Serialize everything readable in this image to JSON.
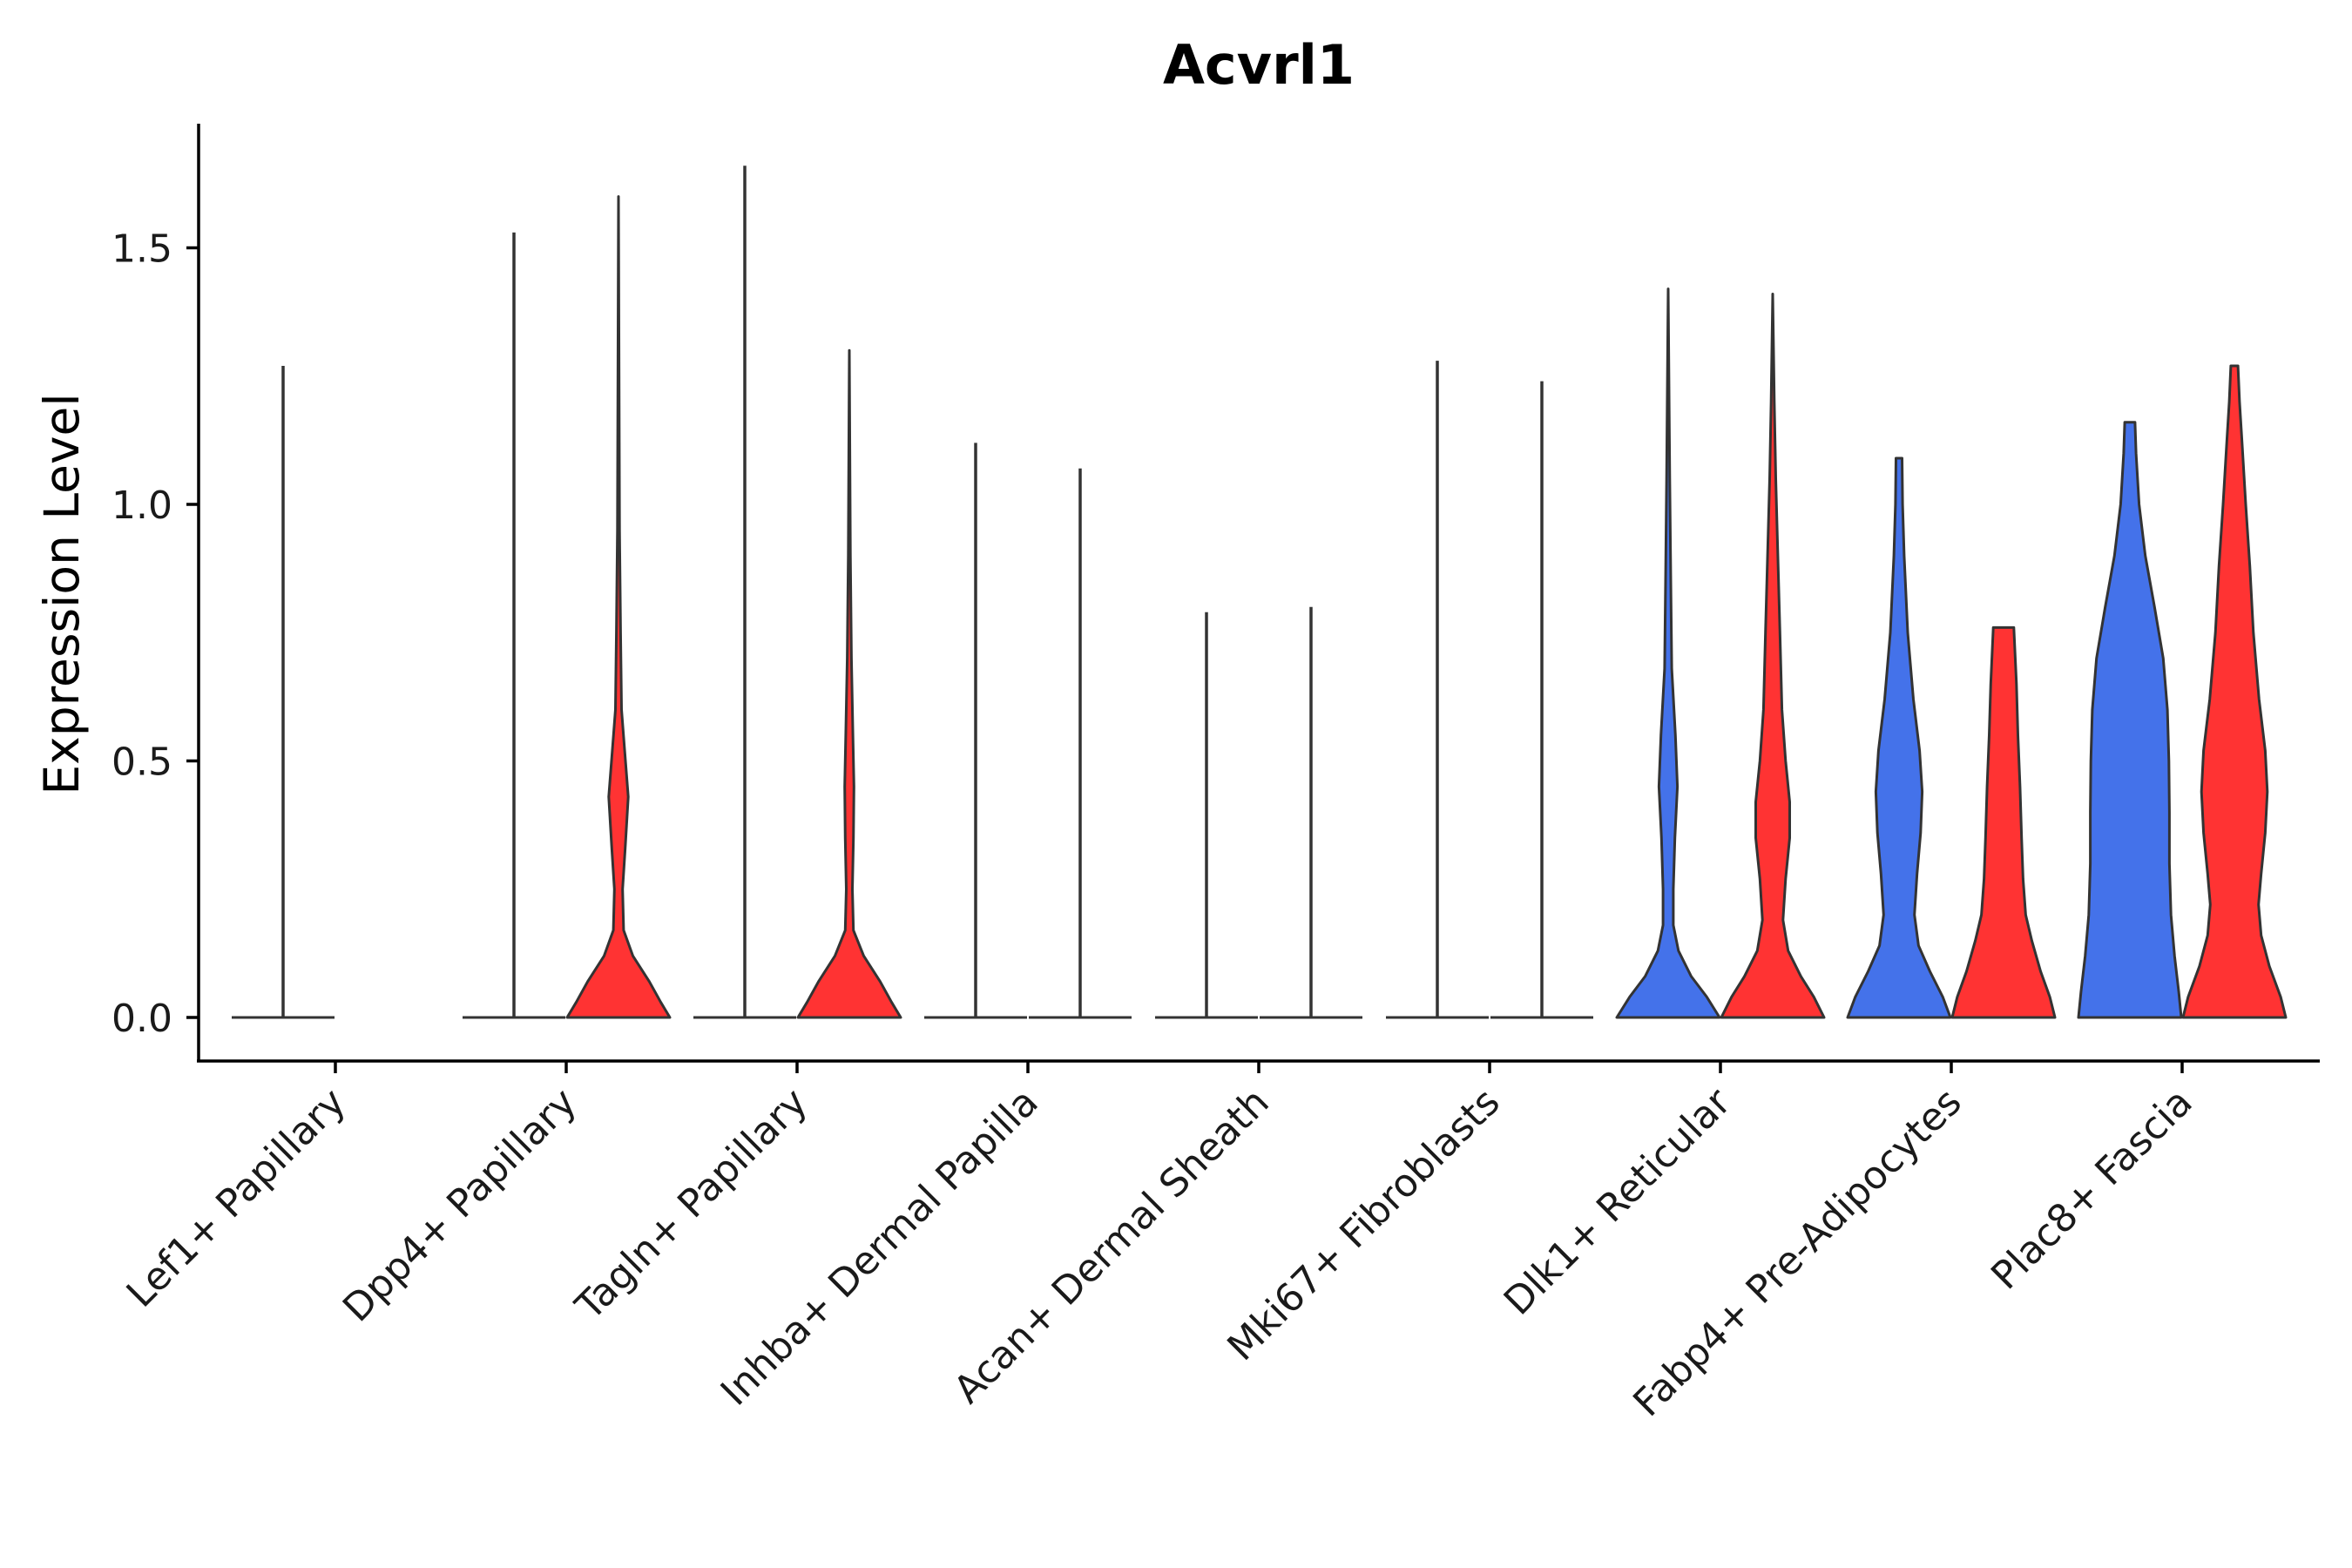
{
  "chart_data": {
    "type": "violin",
    "title": "Acvrl1",
    "xlabel": "",
    "ylabel": "Expression Level",
    "ylim": [
      -0.08,
      1.75
    ],
    "yticks": [
      0.0,
      0.5,
      1.0,
      1.5
    ],
    "ytick_labels": [
      "0.0",
      "0.5",
      "1.0",
      "1.5"
    ],
    "grid": false,
    "legend": "none",
    "group_colors": {
      "1": "#4472ea",
      "2": "#ff3333"
    },
    "categories": [
      "Lef1+ Papillary",
      "Dpp4+ Papillary",
      "Tagln+ Papillary",
      "Inhba+ Dermal Papilla",
      "Acan+ Dermal Sheath",
      "Mki67+ Fibroblasts",
      "Dlk1+ Reticular",
      "Fabp4+ Pre-Adipocytes",
      "Plac8+ Fascia"
    ],
    "violins": [
      {
        "category": "Lef1+ Papillary",
        "group": 1,
        "max": 0.0,
        "profile": [
          [
            0.0,
            1.0
          ],
          [
            0.0,
            0.0
          ]
        ],
        "tail": 1.27
      },
      {
        "category": "Dpp4+ Papillary",
        "group": 1,
        "max": 0.0,
        "profile": [
          [
            0.0,
            1.0
          ],
          [
            0.0,
            0.0
          ]
        ],
        "tail": 1.53
      },
      {
        "category": "Dpp4+ Papillary",
        "group": 2,
        "max": 1.6,
        "profile": [
          [
            0.0,
            1.0
          ],
          [
            0.03,
            0.82
          ],
          [
            0.07,
            0.6
          ],
          [
            0.12,
            0.28
          ],
          [
            0.17,
            0.1
          ],
          [
            0.25,
            0.08
          ],
          [
            0.33,
            0.13
          ],
          [
            0.43,
            0.19
          ],
          [
            0.52,
            0.12
          ],
          [
            0.6,
            0.06
          ],
          [
            0.75,
            0.04
          ],
          [
            0.95,
            0.02
          ],
          [
            1.6,
            0.0
          ]
        ],
        "tail": 1.6
      },
      {
        "category": "Tagln+ Papillary",
        "group": 1,
        "max": 0.0,
        "profile": [
          [
            0.0,
            1.0
          ],
          [
            0.0,
            0.0
          ]
        ],
        "tail": 1.66
      },
      {
        "category": "Tagln+ Papillary",
        "group": 2,
        "max": 1.3,
        "profile": [
          [
            0.0,
            1.0
          ],
          [
            0.03,
            0.82
          ],
          [
            0.07,
            0.6
          ],
          [
            0.12,
            0.28
          ],
          [
            0.17,
            0.08
          ],
          [
            0.25,
            0.06
          ],
          [
            0.35,
            0.08
          ],
          [
            0.45,
            0.09
          ],
          [
            0.55,
            0.07
          ],
          [
            0.7,
            0.04
          ],
          [
            0.9,
            0.02
          ],
          [
            1.3,
            0.0
          ]
        ],
        "tail": 1.3
      },
      {
        "category": "Inhba+ Dermal Papilla",
        "group": 1,
        "max": 0.0,
        "profile": [
          [
            0.0,
            1.0
          ],
          [
            0.0,
            0.0
          ]
        ],
        "tail": 1.12
      },
      {
        "category": "Inhba+ Dermal Papilla",
        "group": 2,
        "max": 0.0,
        "profile": [
          [
            0.0,
            1.0
          ],
          [
            0.0,
            0.0
          ]
        ],
        "tail": 1.07
      },
      {
        "category": "Acan+ Dermal Sheath",
        "group": 1,
        "max": 0.0,
        "profile": [
          [
            0.0,
            1.0
          ],
          [
            0.0,
            0.0
          ]
        ],
        "tail": 0.79
      },
      {
        "category": "Acan+ Dermal Sheath",
        "group": 2,
        "max": 0.0,
        "profile": [
          [
            0.0,
            1.0
          ],
          [
            0.0,
            0.0
          ]
        ],
        "tail": 0.8
      },
      {
        "category": "Mki67+ Fibroblasts",
        "group": 1,
        "max": 0.0,
        "profile": [
          [
            0.0,
            1.0
          ],
          [
            0.0,
            0.0
          ]
        ],
        "tail": 1.28
      },
      {
        "category": "Mki67+ Fibroblasts",
        "group": 2,
        "max": 0.0,
        "profile": [
          [
            0.0,
            1.0
          ],
          [
            0.0,
            0.0
          ]
        ],
        "tail": 1.24
      },
      {
        "category": "Dlk1+ Reticular",
        "group": 1,
        "max": 1.42,
        "profile": [
          [
            0.0,
            1.0
          ],
          [
            0.04,
            0.75
          ],
          [
            0.08,
            0.45
          ],
          [
            0.13,
            0.2
          ],
          [
            0.18,
            0.1
          ],
          [
            0.25,
            0.1
          ],
          [
            0.35,
            0.13
          ],
          [
            0.45,
            0.18
          ],
          [
            0.55,
            0.14
          ],
          [
            0.68,
            0.07
          ],
          [
            0.85,
            0.05
          ],
          [
            1.05,
            0.03
          ],
          [
            1.42,
            0.0
          ]
        ],
        "tail": 1.42
      },
      {
        "category": "Dlk1+ Reticular",
        "group": 2,
        "max": 1.41,
        "profile": [
          [
            0.0,
            1.0
          ],
          [
            0.04,
            0.8
          ],
          [
            0.08,
            0.55
          ],
          [
            0.13,
            0.3
          ],
          [
            0.19,
            0.2
          ],
          [
            0.27,
            0.25
          ],
          [
            0.35,
            0.33
          ],
          [
            0.42,
            0.33
          ],
          [
            0.5,
            0.25
          ],
          [
            0.6,
            0.18
          ],
          [
            0.75,
            0.14
          ],
          [
            0.9,
            0.1
          ],
          [
            1.05,
            0.06
          ],
          [
            1.2,
            0.03
          ],
          [
            1.41,
            0.0
          ]
        ],
        "tail": 1.41
      },
      {
        "category": "Fabp4+ Pre-Adipocytes",
        "group": 1,
        "max": 1.09,
        "profile": [
          [
            0.0,
            1.0
          ],
          [
            0.04,
            0.85
          ],
          [
            0.09,
            0.6
          ],
          [
            0.14,
            0.38
          ],
          [
            0.2,
            0.3
          ],
          [
            0.28,
            0.35
          ],
          [
            0.36,
            0.42
          ],
          [
            0.44,
            0.45
          ],
          [
            0.52,
            0.4
          ],
          [
            0.62,
            0.28
          ],
          [
            0.75,
            0.17
          ],
          [
            0.9,
            0.1
          ],
          [
            1.0,
            0.07
          ],
          [
            1.09,
            0.06
          ]
        ],
        "tail": 1.09
      },
      {
        "category": "Fabp4+ Pre-Adipocytes",
        "group": 2,
        "max": 0.76,
        "profile": [
          [
            0.0,
            1.0
          ],
          [
            0.04,
            0.9
          ],
          [
            0.09,
            0.72
          ],
          [
            0.15,
            0.55
          ],
          [
            0.2,
            0.43
          ],
          [
            0.27,
            0.38
          ],
          [
            0.35,
            0.35
          ],
          [
            0.45,
            0.32
          ],
          [
            0.55,
            0.28
          ],
          [
            0.65,
            0.25
          ],
          [
            0.76,
            0.2
          ]
        ],
        "tail": 0.76
      },
      {
        "category": "Plac8+ Fascia",
        "group": 1,
        "max": 1.16,
        "profile": [
          [
            0.0,
            1.0
          ],
          [
            0.05,
            0.95
          ],
          [
            0.12,
            0.87
          ],
          [
            0.2,
            0.8
          ],
          [
            0.3,
            0.77
          ],
          [
            0.4,
            0.77
          ],
          [
            0.5,
            0.76
          ],
          [
            0.6,
            0.73
          ],
          [
            0.7,
            0.65
          ],
          [
            0.8,
            0.48
          ],
          [
            0.9,
            0.3
          ],
          [
            1.0,
            0.18
          ],
          [
            1.1,
            0.12
          ],
          [
            1.16,
            0.1
          ]
        ],
        "tail": 1.16
      },
      {
        "category": "Plac8+ Fascia",
        "group": 2,
        "max": 1.27,
        "profile": [
          [
            0.0,
            1.0
          ],
          [
            0.04,
            0.9
          ],
          [
            0.1,
            0.68
          ],
          [
            0.16,
            0.52
          ],
          [
            0.22,
            0.47
          ],
          [
            0.28,
            0.52
          ],
          [
            0.36,
            0.6
          ],
          [
            0.44,
            0.64
          ],
          [
            0.52,
            0.6
          ],
          [
            0.62,
            0.48
          ],
          [
            0.75,
            0.37
          ],
          [
            0.88,
            0.3
          ],
          [
            1.0,
            0.22
          ],
          [
            1.12,
            0.15
          ],
          [
            1.2,
            0.1
          ],
          [
            1.27,
            0.07
          ]
        ],
        "tail": 1.27
      }
    ]
  }
}
